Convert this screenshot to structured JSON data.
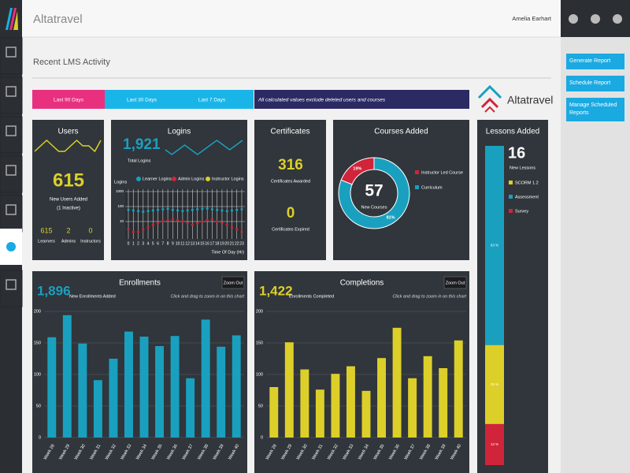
{
  "header": {
    "app_name": "Altatravel",
    "user": "Amelia Earhart"
  },
  "page_title": "Recent LMS Activity",
  "tabs": [
    "Last 90 Days",
    "Last 30 Days",
    "Last 7 Days"
  ],
  "notice": "All calculated values exclude deleted users and courses",
  "brand": "Altatravel",
  "actions": [
    "Generate Report",
    "Schedule Report",
    "Manage Scheduled Reports"
  ],
  "panels": {
    "users": {
      "title": "Users",
      "value": "615",
      "label": "New Users Added",
      "note": "(1 Inactive)",
      "stats": [
        {
          "value": "615",
          "label": "Learners"
        },
        {
          "value": "2",
          "label": "Admins"
        },
        {
          "value": "0",
          "label": "Instructors"
        }
      ]
    },
    "logins": {
      "title": "Logins",
      "value": "1,921",
      "label": "Total Logins"
    },
    "certificates": {
      "title": "Certificates",
      "awarded": "316",
      "awarded_label": "Certificates Awarded",
      "expired": "0",
      "expired_label": "Certificates Expired"
    },
    "courses": {
      "title": "Courses Added",
      "value": "57",
      "label": "New Courses"
    },
    "lessons": {
      "title": "Lessons Added",
      "value": "16",
      "label": "New Lessons"
    },
    "enrollments": {
      "title": "Enrollments",
      "value": "1,896",
      "label": "New Enrollments Added",
      "zoom": "Zoom Out",
      "hint": "Click and drag to zoom in on this chart"
    },
    "completions": {
      "title": "Completions",
      "value": "1,422",
      "label": "Enrollments Completed",
      "zoom": "Zoom Out",
      "hint": "Click and drag to zoom in on this chart"
    }
  },
  "chart_data": [
    {
      "type": "sparkline",
      "color": "#dccf2a",
      "values": [
        5,
        6,
        7,
        6,
        5,
        5,
        6,
        7,
        6,
        6,
        5,
        7
      ]
    },
    {
      "type": "sparkline",
      "color": "#1aa0bf",
      "values": [
        6,
        5,
        6,
        7,
        6,
        5,
        6,
        7,
        8,
        7,
        6,
        7,
        8
      ]
    },
    {
      "type": "line",
      "ylabel": "Logins",
      "xlabel": "Time Of Day (Hr)",
      "log_scale": true,
      "grid": true,
      "x": [
        0,
        1,
        2,
        3,
        4,
        5,
        6,
        7,
        8,
        9,
        10,
        11,
        12,
        13,
        14,
        15,
        16,
        17,
        18,
        19,
        20,
        21,
        22,
        23
      ],
      "xlim": [
        0,
        23
      ],
      "xticks": [
        0,
        1,
        2,
        3,
        4,
        5,
        6,
        7,
        8,
        9,
        10,
        11,
        12,
        13,
        14,
        15,
        16,
        17,
        18,
        19,
        20,
        21,
        22,
        23
      ],
      "ylim": [
        1,
        1000
      ],
      "yticks": [
        10,
        100,
        1000
      ],
      "series": [
        {
          "name": "Learner Logins",
          "color": "#1aa0bf",
          "values": [
            60,
            55,
            50,
            45,
            50,
            55,
            60,
            65,
            70,
            60,
            55,
            50,
            55,
            60,
            65,
            70,
            75,
            65,
            60,
            55,
            50,
            55,
            60,
            65
          ]
        },
        {
          "name": "Admin Logins",
          "color": "#d0243a",
          "values": [
            3,
            2,
            2,
            3,
            4,
            6,
            8,
            10,
            12,
            14,
            12,
            10,
            8,
            6,
            8,
            10,
            12,
            14,
            10,
            8,
            6,
            4,
            3,
            2
          ]
        },
        {
          "name": "Instructor Logins",
          "color": "#dccf2a",
          "values": [
            null,
            null,
            null,
            null,
            null,
            null,
            null,
            null,
            null,
            null,
            null,
            null,
            null,
            null,
            null,
            null,
            null,
            null,
            null,
            null,
            null,
            null,
            null,
            null
          ]
        }
      ]
    },
    {
      "type": "pie",
      "donut": true,
      "categories": [
        "Instructor Led Course",
        "Curriculum"
      ],
      "values": [
        19,
        81
      ],
      "value_labels": [
        "19%",
        "81%"
      ],
      "colors": [
        "#d0243a",
        "#1aa0bf"
      ]
    },
    {
      "type": "stacked_bar",
      "stack_order": [
        2,
        0,
        1
      ],
      "series": [
        {
          "name": "SCORM 1.2",
          "color": "#dccf2a",
          "values": [
            25
          ],
          "value_labels": [
            "25 %"
          ]
        },
        {
          "name": "Assessment",
          "color": "#1aa0bf",
          "values": [
            63
          ],
          "value_labels": [
            "63 %"
          ]
        },
        {
          "name": "Survey",
          "color": "#d0243a",
          "values": [
            13
          ],
          "value_labels": [
            "13 %"
          ]
        }
      ]
    },
    {
      "type": "bar",
      "color": "#1aa0bf",
      "grid": true,
      "categories": [
        "Week 28",
        "Week 29",
        "Week 30",
        "Week 31",
        "Week 32",
        "Week 33",
        "Week 34",
        "Week 35",
        "Week 36",
        "Week 37",
        "Week 38",
        "Week 39",
        "Week 40"
      ],
      "values": [
        159,
        194,
        149,
        91,
        125,
        168,
        160,
        145,
        161,
        94,
        187,
        144,
        162
      ],
      "ylim": [
        0,
        200
      ],
      "yticks": [
        0,
        50,
        100,
        150,
        200
      ]
    },
    {
      "type": "bar",
      "color": "#dccf2a",
      "grid": true,
      "categories": [
        "Week 28",
        "Week 29",
        "Week 30",
        "Week 31",
        "Week 32",
        "Week 33",
        "Week 34",
        "Week 35",
        "Week 36",
        "Week 37",
        "Week 38",
        "Week 39",
        "Week 40"
      ],
      "values": [
        80,
        151,
        108,
        76,
        101,
        113,
        74,
        126,
        174,
        94,
        129,
        110,
        154
      ],
      "ylim": [
        0,
        200
      ],
      "yticks": [
        0,
        50,
        100,
        150,
        200
      ]
    }
  ]
}
